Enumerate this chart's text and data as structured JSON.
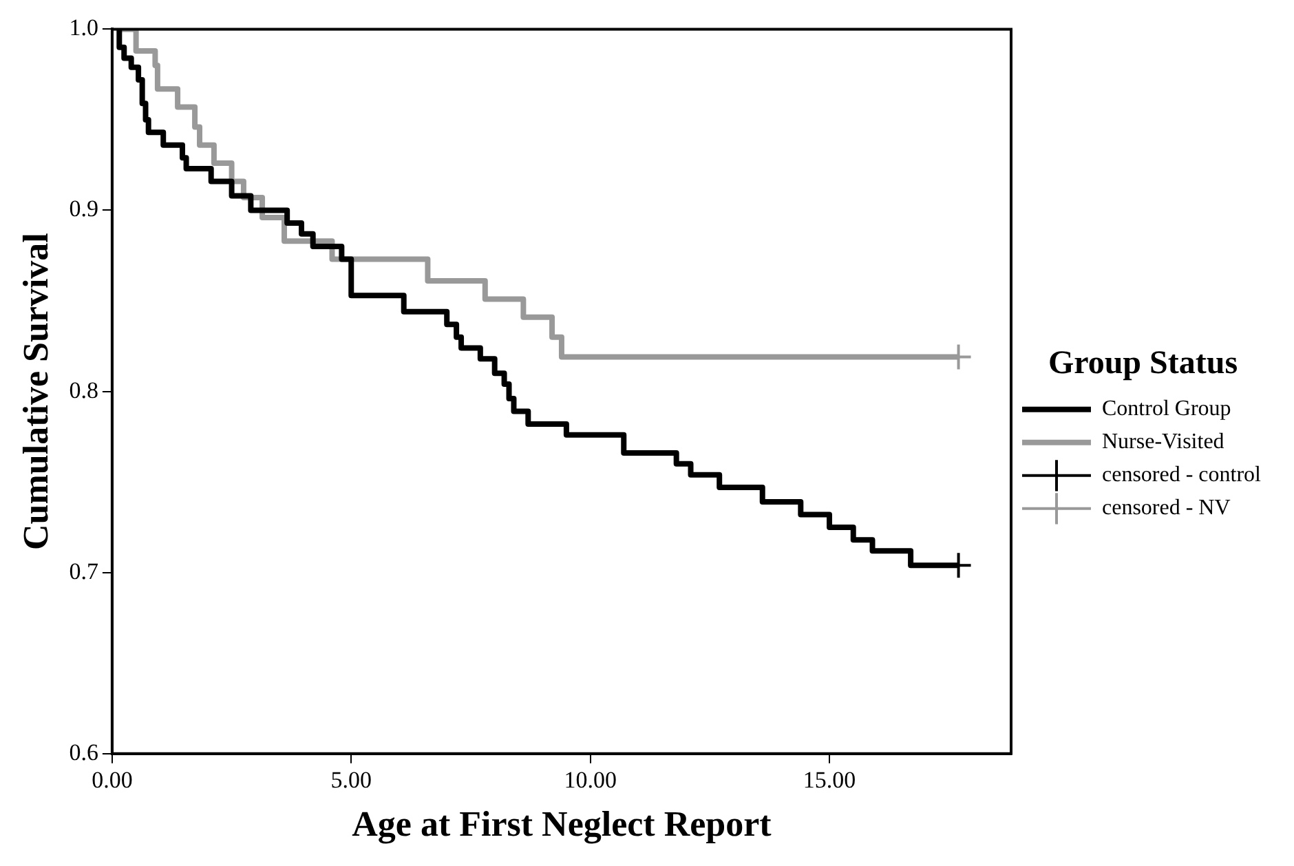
{
  "chart_data": {
    "type": "step",
    "xlabel": "Age at First Neglect Report",
    "ylabel": "Cumulative Survival",
    "legend_title": "Group Status",
    "legend": "right",
    "grid": false,
    "xlim": [
      0,
      18.8
    ],
    "xticks": [
      {
        "value": 0,
        "label": "0.00"
      },
      {
        "value": 5,
        "label": "5.00"
      },
      {
        "value": 10,
        "label": "10.00"
      },
      {
        "value": 15,
        "label": "15.00"
      }
    ],
    "ylim": [
      0.6,
      1.0
    ],
    "yticks": [
      0.6,
      0.7,
      0.8,
      0.9,
      {
        "value": 1,
        "label": "1.0"
      }
    ],
    "series": [
      {
        "name": "Control Group",
        "color": "#000000",
        "x": [
          0.1,
          0.15,
          0.25,
          0.4,
          0.55,
          0.63,
          0.7,
          0.76,
          1.07,
          1.47,
          1.55,
          2.07,
          2.5,
          2.9,
          3.66,
          3.96,
          4.2,
          4.8,
          5.0,
          6.1,
          7.0,
          7.2,
          7.3,
          7.7,
          8.0,
          8.2,
          8.3,
          8.4,
          8.7,
          9.5,
          10.7,
          11.8,
          12.1,
          12.7,
          13.6,
          14.4,
          15.0,
          15.5,
          15.9,
          16.7,
          17.7
        ],
        "values": [
          1.0,
          0.99,
          0.984,
          0.979,
          0.972,
          0.959,
          0.95,
          0.943,
          0.936,
          0.929,
          0.923,
          0.916,
          0.908,
          0.9,
          0.893,
          0.887,
          0.88,
          0.873,
          0.853,
          0.844,
          0.837,
          0.83,
          0.824,
          0.818,
          0.81,
          0.804,
          0.796,
          0.789,
          0.782,
          0.776,
          0.766,
          0.76,
          0.754,
          0.747,
          0.739,
          0.732,
          0.725,
          0.718,
          0.712,
          0.704,
          0.704
        ]
      },
      {
        "name": "Nurse-Visited",
        "color": "#999999",
        "x": [
          0.15,
          0.5,
          0.9,
          0.95,
          1.37,
          1.73,
          1.83,
          2.13,
          2.5,
          2.75,
          3.14,
          3.6,
          4.6,
          6.6,
          7.8,
          8.6,
          9.2,
          9.4,
          17.7
        ],
        "values": [
          1.0,
          0.988,
          0.98,
          0.967,
          0.957,
          0.946,
          0.936,
          0.926,
          0.916,
          0.907,
          0.896,
          0.883,
          0.873,
          0.861,
          0.851,
          0.841,
          0.83,
          0.819,
          0.819
        ]
      },
      {
        "name": "censored - control",
        "type": "scatter",
        "marker": "cross",
        "color": "#000000",
        "x": [
          17.7
        ],
        "values": [
          0.704
        ]
      },
      {
        "name": "censored - NV",
        "type": "scatter",
        "marker": "cross",
        "color": "#999999",
        "x": [
          17.7
        ],
        "values": [
          0.819
        ]
      }
    ]
  }
}
